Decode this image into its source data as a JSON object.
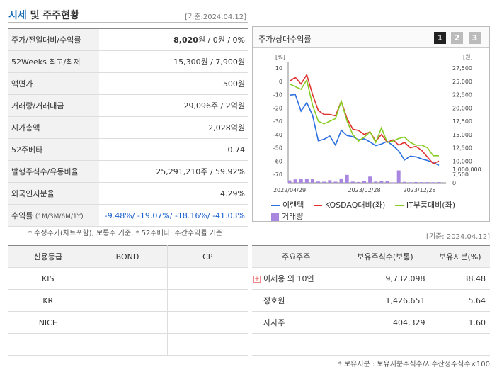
{
  "header": {
    "title_accent": "시세",
    "title_rest": " 및 주주현황",
    "date": "[기준:2024.04.12]"
  },
  "info": {
    "rows": [
      {
        "label": "주가/전일대비/수익률",
        "value_bold": "8,020",
        "value_rest": "원 / 0원 / 0%"
      },
      {
        "label": "52Weeks 최고/최저",
        "value": "15,300원 / 7,900원"
      },
      {
        "label": "액면가",
        "value": "500원"
      },
      {
        "label": "거래량/거래대금",
        "value": "29,096주 / 2억원"
      },
      {
        "label": "시가총액",
        "value": "2,028억원"
      },
      {
        "label": "52주베타",
        "value": "0.74"
      },
      {
        "label": "발행주식수/유동비율",
        "value": "25,291,210주 / 59.92%"
      },
      {
        "label": "외국인지분율",
        "value": "4.29%"
      }
    ],
    "return_label": "수익률",
    "return_periods": "(1M/3M/6M/1Y)",
    "return_value": "-9.48%/ -19.07%/ -18.16%/ -41.03%"
  },
  "note_left": "* 수정주가(차트포함), 보통주 기준, * 52주베타: 주간수익률 기준",
  "chart_panel": {
    "title": "주가/상대수익률",
    "period_buttons": [
      "1",
      "2",
      "3"
    ],
    "legend": [
      "이랜텍",
      "KOSDAQ대비(좌)",
      "IT부품대비(좌)",
      "거래량"
    ]
  },
  "chart_data": {
    "type": "line",
    "y_left_unit": "[%]",
    "y_right_unit": "[원]",
    "y_left_ticks": [
      "10",
      "0",
      "-10",
      "-20",
      "-30",
      "-40",
      "-50",
      "-60",
      "-70"
    ],
    "y_right_ticks": [
      "27,500",
      "25,000",
      "22,500",
      "20,000",
      "17,500",
      "15,000",
      "12,500",
      "10,000",
      "7,500"
    ],
    "volume_ticks": [
      "1,000,000",
      "0"
    ],
    "x_ticks": [
      "2022/04/29",
      "2023/02/28",
      "2023/12/28"
    ],
    "ylim_left": [
      -70,
      10
    ],
    "ylim_right": [
      7500,
      27500
    ],
    "series": [
      {
        "name": "이랜텍",
        "axis": "right",
        "color": "#2a6fe0",
        "values": [
          22400,
          22500,
          19400,
          21000,
          18600,
          13800,
          14100,
          14700,
          13000,
          15800,
          14800,
          14600,
          14000,
          14200,
          13600,
          12900,
          13200,
          13700,
          12900,
          11900,
          10200,
          10900,
          10800,
          10400,
          10100,
          9700,
          9200
        ]
      },
      {
        "name": "KOSDAQ대비(좌)",
        "axis": "left",
        "color": "#e03030",
        "values": [
          0,
          3,
          -2,
          5,
          -10,
          -22,
          -25,
          -25,
          -26,
          -15,
          -28,
          -36,
          -37,
          -40,
          -38,
          -45,
          -40,
          -46,
          -44,
          -48,
          -46,
          -50,
          -49,
          -52,
          -57,
          -62,
          -60
        ]
      },
      {
        "name": "IT부품대비(좌)",
        "axis": "left",
        "color": "#88cc22",
        "values": [
          -2,
          -4,
          -6,
          1,
          -18,
          -30,
          -32,
          -30,
          -28,
          -15,
          -30,
          -40,
          -45,
          -42,
          -38,
          -46,
          -35,
          -46,
          -45,
          -43,
          -42,
          -46,
          -48,
          -48,
          -50,
          -56,
          -56
        ]
      },
      {
        "name": "거래량",
        "type": "bar",
        "axis": "volume",
        "color": "#a986e0",
        "values": [
          270000,
          380000,
          460000,
          420000,
          450000,
          140000,
          120000,
          290000,
          120000,
          480000,
          880000,
          130000,
          90000,
          170000,
          690000,
          130000,
          220000,
          170000,
          50000,
          1380000,
          100000,
          60000,
          80000,
          70000,
          70000,
          60000,
          80000
        ]
      }
    ],
    "ylim_volume": [
      0,
      1500000
    ]
  },
  "date_right": "[기준: 2024.04.12]",
  "credit": {
    "headers": [
      "신용등급",
      "BOND",
      "CP"
    ],
    "rows": [
      [
        "KIS",
        "",
        ""
      ],
      [
        "KR",
        "",
        ""
      ],
      [
        "NICE",
        "",
        ""
      ],
      [
        "",
        "",
        ""
      ]
    ]
  },
  "holders": {
    "headers": [
      "주요주주",
      "보유주식수(보통)",
      "보유지분(%)"
    ],
    "plus_icon": "+",
    "rows": [
      {
        "name": "이세용 외 10인",
        "shares": "9,732,098",
        "pct": "38.48"
      },
      {
        "name": "정호원",
        "shares": "1,426,651",
        "pct": "5.64"
      },
      {
        "name": "자사주",
        "shares": "404,329",
        "pct": "1.60"
      }
    ]
  },
  "note_right": "* 보유지분 : 보유지분주식수/지수산정주식수×100"
}
